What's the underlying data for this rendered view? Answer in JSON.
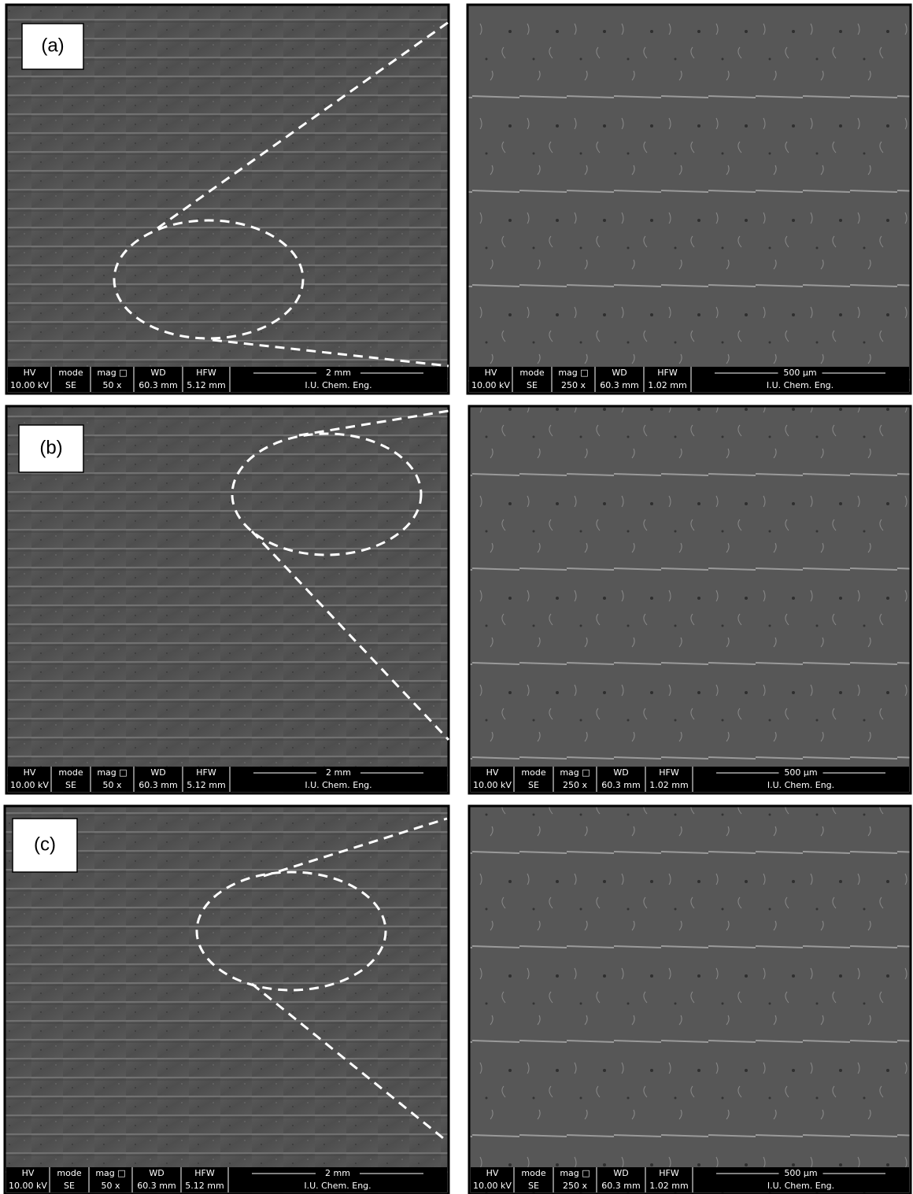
{
  "panels": [
    {
      "label": "(a)",
      "images": [
        {
          "headers": [
            "HV",
            "mode",
            "mag □",
            "WD",
            "HFW"
          ],
          "values": [
            "10.00 kV",
            "SE",
            "50 x",
            "60.3 mm",
            "5.12 mm"
          ],
          "scale": "2 mm",
          "lab": "I.U. Chem. Eng."
        },
        {
          "headers": [
            "HV",
            "mode",
            "mag □",
            "WD",
            "HFW"
          ],
          "values": [
            "10.00 kV",
            "SE",
            "250 x",
            "60.3 mm",
            "1.02 mm"
          ],
          "scale": "500 µm",
          "lab": "I.U. Chem. Eng."
        }
      ]
    },
    {
      "label": "(b)",
      "images": [
        {
          "headers": [
            "HV",
            "mode",
            "mag □",
            "WD",
            "HFW"
          ],
          "values": [
            "10.00 kV",
            "SE",
            "50 x",
            "60.3 mm",
            "5.12 mm"
          ],
          "scale": "2 mm",
          "lab": "I.U. Chem. Eng."
        },
        {
          "headers": [
            "HV",
            "mode",
            "mag □",
            "WD",
            "HFW"
          ],
          "values": [
            "10.00 kV",
            "SE",
            "250 x",
            "60.3 mm",
            "1.02 mm"
          ],
          "scale": "500 µm",
          "lab": "I.U. Chem. Eng."
        }
      ]
    },
    {
      "label": "(c)",
      "images": [
        {
          "headers": [
            "HV",
            "mode",
            "mag □",
            "WD",
            "HFW"
          ],
          "values": [
            "10.00 kV",
            "SE",
            "50 x",
            "60.3 mm",
            "5.12 mm"
          ],
          "scale": "2 mm",
          "lab": "I.U. Chem. Eng."
        },
        {
          "headers": [
            "HV",
            "mode",
            "mag □",
            "WD",
            "HFW"
          ],
          "values": [
            "10.00 kV",
            "SE",
            "250 x",
            "60.3 mm",
            "1.02 mm"
          ],
          "scale": "500 µm",
          "lab": "I.U. Chem. Eng."
        }
      ]
    }
  ]
}
